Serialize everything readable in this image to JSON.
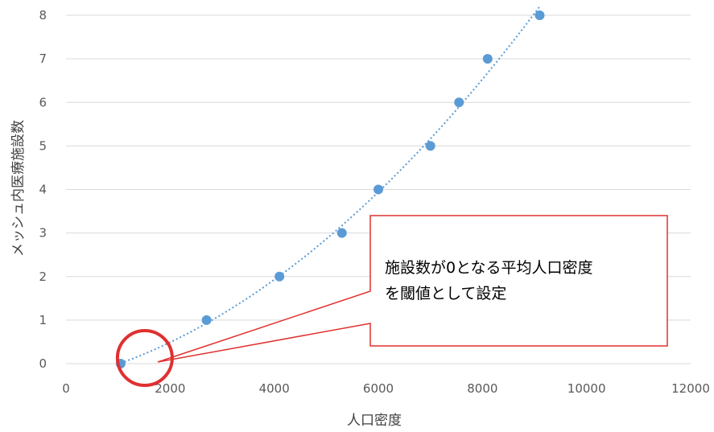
{
  "chart_data": {
    "type": "scatter",
    "title": "",
    "xlabel": "人口密度",
    "ylabel": "メッシュ内医療施設数",
    "xlim": [
      0,
      12000
    ],
    "ylim": [
      0,
      8
    ],
    "x_ticks": [
      "0",
      "2000",
      "4000",
      "6000",
      "8000",
      "10000",
      "12000"
    ],
    "y_ticks": [
      "0",
      "1",
      "2",
      "3",
      "4",
      "5",
      "6",
      "7",
      "8"
    ],
    "grid": "horizontal",
    "legend": "none",
    "point_color": "#5B9BD5",
    "trendline": {
      "style": "dotted",
      "color": "#5B9BD5",
      "type": "polynomial"
    },
    "series": [
      {
        "x": [
          1050,
          2700,
          4100,
          5300,
          6000,
          7000,
          7550,
          8100,
          9100
        ],
        "y": [
          0,
          1,
          2,
          3,
          4,
          5,
          6,
          7,
          8
        ]
      }
    ],
    "annotation": {
      "lines": [
        "施設数が0となる平均人口密度",
        "を閾値として設定"
      ],
      "border_color": "#E03030",
      "highlight": {
        "x": 1050,
        "y": 0
      }
    }
  }
}
